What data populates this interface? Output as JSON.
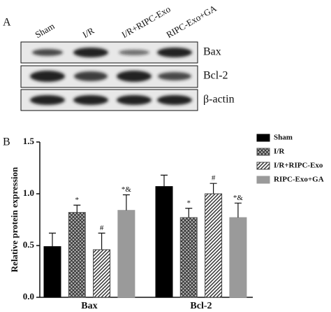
{
  "blot": {
    "label": "A",
    "lanes": [
      "Sham",
      "I/R",
      "I/R+RIPC-Exo",
      "RIPC-Exo+GA"
    ],
    "proteins": [
      "Bax",
      "Bcl-2",
      "β-actin"
    ]
  },
  "chart_data": {
    "type": "bar",
    "panel_label": "B",
    "ylabel": "Relative protein expression",
    "categories": [
      "Bax",
      "Bcl-2"
    ],
    "series": [
      {
        "name": "Sham",
        "color": "#000000",
        "pattern": "solid",
        "values": [
          0.49,
          1.07
        ],
        "errors": [
          0.13,
          0.11
        ],
        "annotations": [
          null,
          null
        ]
      },
      {
        "name": "I/R",
        "color": "#555555",
        "pattern": "crosshatch",
        "values": [
          0.82,
          0.77
        ],
        "errors": [
          0.07,
          0.09
        ],
        "annotations": [
          "*",
          "*"
        ]
      },
      {
        "name": "I/R+RIPC-Exo",
        "color": "#444444",
        "pattern": "diagonal",
        "values": [
          0.46,
          1.0
        ],
        "errors": [
          0.16,
          0.1
        ],
        "annotations": [
          "#",
          "#"
        ]
      },
      {
        "name": "RIPC-Exo+GA",
        "color": "#9a9a9a",
        "pattern": "solid",
        "values": [
          0.84,
          0.77
        ],
        "errors": [
          0.15,
          0.14
        ],
        "annotations": [
          "*&",
          "*&"
        ]
      }
    ],
    "ylim": [
      0,
      1.5
    ],
    "yticks": [
      {
        "value": 0,
        "label": "0.0"
      },
      0.5,
      {
        "value": 1,
        "label": "1.0"
      },
      1.5
    ]
  }
}
